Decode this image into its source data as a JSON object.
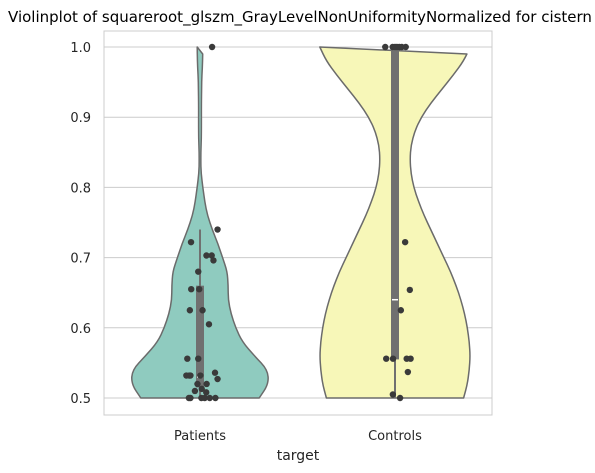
{
  "chart_data": {
    "type": "violin",
    "title": "Violinplot of squareroot_glszm_GrayLevelNonUniformityNormalized for cistern",
    "xlabel": "target",
    "ylabel": "",
    "categories": [
      "Patients",
      "Controls"
    ],
    "ylim": [
      0.5,
      1.0
    ],
    "yticks": [
      "0.5",
      "0.6",
      "0.7",
      "0.8",
      "0.9",
      "1.0"
    ],
    "grid": "horizontal",
    "colors": {
      "Patients": "#8fcbbf",
      "Controls": "#f7f7b8",
      "outline": "#6b6b6b",
      "point": "#3a3a3a",
      "box": "#707070"
    },
    "violins": [
      {
        "category": "Patients",
        "profile": [
          [
            0.5,
            0.63
          ],
          [
            0.52,
            0.73
          ],
          [
            0.54,
            0.72
          ],
          [
            0.56,
            0.58
          ],
          [
            0.58,
            0.45
          ],
          [
            0.6,
            0.38
          ],
          [
            0.62,
            0.33
          ],
          [
            0.64,
            0.3
          ],
          [
            0.66,
            0.3
          ],
          [
            0.68,
            0.29
          ],
          [
            0.7,
            0.24
          ],
          [
            0.72,
            0.19
          ],
          [
            0.74,
            0.13
          ],
          [
            0.76,
            0.08
          ],
          [
            0.78,
            0.05
          ],
          [
            0.8,
            0.03
          ],
          [
            0.82,
            0.012
          ],
          [
            0.84,
            0.008
          ],
          [
            0.86,
            0.012
          ],
          [
            0.88,
            0.015
          ],
          [
            0.9,
            0.015
          ],
          [
            0.92,
            0.015
          ],
          [
            0.94,
            0.017
          ],
          [
            0.96,
            0.02
          ],
          [
            0.98,
            0.028
          ],
          [
            1.0,
            0.03
          ]
        ],
        "box": {
          "q1": 0.515,
          "median": 0.53,
          "q3": 0.66,
          "whisker_low": 0.5,
          "whisker_high": 0.74
        },
        "points": [
          [
            0.062,
            1.0
          ],
          [
            0.09,
            0.74
          ],
          [
            -0.046,
            0.722
          ],
          [
            0.033,
            0.703
          ],
          [
            0.06,
            0.703
          ],
          [
            0.069,
            0.696
          ],
          [
            -0.009,
            0.68
          ],
          [
            -0.045,
            0.655
          ],
          [
            -0.004,
            0.655
          ],
          [
            0.013,
            0.625
          ],
          [
            -0.052,
            0.625
          ],
          [
            0.046,
            0.605
          ],
          [
            -0.065,
            0.556
          ],
          [
            -0.009,
            0.556
          ],
          [
            -0.07,
            0.532
          ],
          [
            -0.049,
            0.532
          ],
          [
            -0.055,
            0.532
          ],
          [
            0.002,
            0.532
          ],
          [
            0.077,
            0.536
          ],
          [
            0.09,
            0.527
          ],
          [
            -0.013,
            0.52
          ],
          [
            0.034,
            0.52
          ],
          [
            0.009,
            0.513
          ],
          [
            -0.026,
            0.51
          ],
          [
            0.032,
            0.508
          ],
          [
            -0.057,
            0.5
          ],
          [
            -0.049,
            0.5
          ],
          [
            0.007,
            0.5
          ],
          [
            0.024,
            0.5
          ],
          [
            0.05,
            0.5
          ],
          [
            0.079,
            0.5
          ]
        ]
      },
      {
        "category": "Controls",
        "profile": [
          [
            0.5,
            0.73
          ],
          [
            0.52,
            0.77
          ],
          [
            0.54,
            0.79
          ],
          [
            0.56,
            0.8
          ],
          [
            0.58,
            0.79
          ],
          [
            0.6,
            0.77
          ],
          [
            0.62,
            0.74
          ],
          [
            0.64,
            0.7
          ],
          [
            0.66,
            0.65
          ],
          [
            0.68,
            0.59
          ],
          [
            0.7,
            0.52
          ],
          [
            0.72,
            0.45
          ],
          [
            0.74,
            0.38
          ],
          [
            0.76,
            0.31
          ],
          [
            0.78,
            0.25
          ],
          [
            0.8,
            0.2
          ],
          [
            0.82,
            0.17
          ],
          [
            0.84,
            0.16
          ],
          [
            0.86,
            0.17
          ],
          [
            0.88,
            0.21
          ],
          [
            0.9,
            0.28
          ],
          [
            0.92,
            0.38
          ],
          [
            0.94,
            0.5
          ],
          [
            0.96,
            0.62
          ],
          [
            0.98,
            0.73
          ],
          [
            1.0,
            0.8
          ]
        ],
        "box": {
          "q1": 0.555,
          "median": 0.64,
          "q3": 1.0,
          "whisker_low": 0.5,
          "whisker_high": 1.0
        },
        "points": [
          [
            -0.05,
            1.0
          ],
          [
            -0.012,
            1.0
          ],
          [
            0.0,
            1.0
          ],
          [
            0.01,
            1.0
          ],
          [
            0.022,
            1.0
          ],
          [
            0.035,
            1.0
          ],
          [
            0.055,
            1.0
          ],
          [
            0.052,
            0.722
          ],
          [
            0.076,
            0.654
          ],
          [
            0.03,
            0.625
          ],
          [
            -0.045,
            0.556
          ],
          [
            -0.01,
            0.556
          ],
          [
            0.06,
            0.556
          ],
          [
            0.08,
            0.556
          ],
          [
            0.066,
            0.537
          ],
          [
            -0.011,
            0.505
          ],
          [
            0.026,
            0.5
          ]
        ]
      }
    ]
  }
}
